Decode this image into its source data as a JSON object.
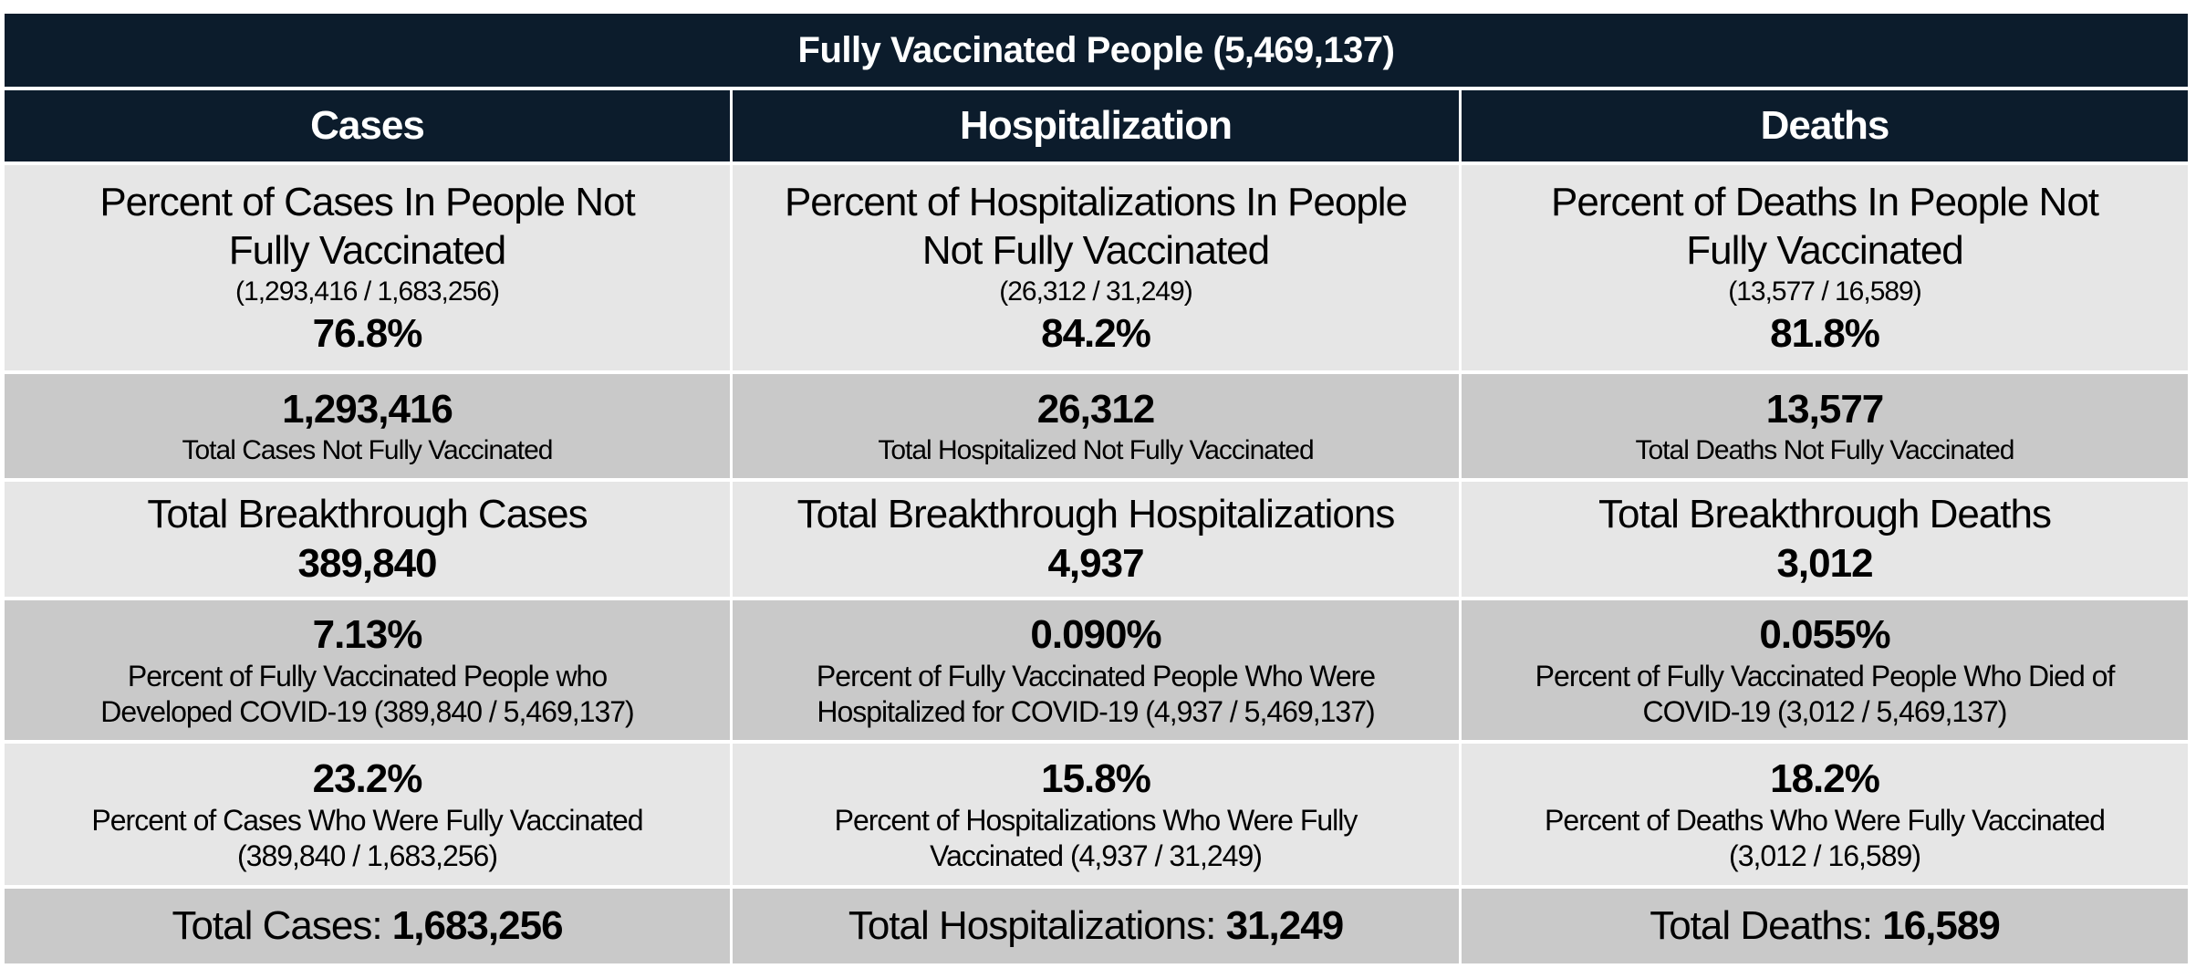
{
  "title": "Fully Vaccinated People (5,469,137)",
  "colors": {
    "header_bg": "#0c1c2c",
    "light_row": "#e6e6e6",
    "dark_row": "#c9c9c9"
  },
  "columns": [
    {
      "header": "Cases",
      "not_vax_pct_label_1": "Percent of Cases In People Not",
      "not_vax_pct_label_2": "Fully Vaccinated",
      "not_vax_fraction": "(1,293,416 / 1,683,256)",
      "not_vax_pct": "76.8%",
      "not_vax_total": "1,293,416",
      "not_vax_total_label": "Total Cases Not Fully Vaccinated",
      "breakthrough_label": "Total Breakthrough Cases",
      "breakthrough_value": "389,840",
      "vax_pop_pct": "7.13%",
      "vax_pop_label_1": "Percent of Fully Vaccinated People who",
      "vax_pop_label_2": "Developed COVID-19 (389,840 / 5,469,137)",
      "share_vax_pct": "23.2%",
      "share_vax_label_1": "Percent of Cases Who Were Fully Vaccinated",
      "share_vax_label_2": "(389,840 / 1,683,256)",
      "total_label": "Total Cases: ",
      "total_value": "1,683,256"
    },
    {
      "header": "Hospitalization",
      "not_vax_pct_label_1": "Percent of Hospitalizations In People",
      "not_vax_pct_label_2": "Not Fully Vaccinated",
      "not_vax_fraction": "(26,312 / 31,249)",
      "not_vax_pct": "84.2%",
      "not_vax_total": "26,312",
      "not_vax_total_label": "Total Hospitalized Not Fully Vaccinated",
      "breakthrough_label": "Total Breakthrough Hospitalizations",
      "breakthrough_value": "4,937",
      "vax_pop_pct": "0.090%",
      "vax_pop_label_1": "Percent of Fully Vaccinated People Who Were",
      "vax_pop_label_2": "Hospitalized for COVID-19 (4,937 / 5,469,137)",
      "share_vax_pct": "15.8%",
      "share_vax_label_1": "Percent of Hospitalizations Who Were Fully",
      "share_vax_label_2": "Vaccinated (4,937 / 31,249)",
      "total_label": "Total Hospitalizations: ",
      "total_value": "31,249"
    },
    {
      "header": "Deaths",
      "not_vax_pct_label_1": "Percent of Deaths In People Not",
      "not_vax_pct_label_2": "Fully Vaccinated",
      "not_vax_fraction": "(13,577 / 16,589)",
      "not_vax_pct": "81.8%",
      "not_vax_total": "13,577",
      "not_vax_total_label": "Total Deaths Not Fully Vaccinated",
      "breakthrough_label": "Total Breakthrough Deaths",
      "breakthrough_value": "3,012",
      "vax_pop_pct": "0.055%",
      "vax_pop_label_1": "Percent of Fully Vaccinated People Who Died of",
      "vax_pop_label_2": "COVID-19 (3,012 / 5,469,137)",
      "share_vax_pct": "18.2%",
      "share_vax_label_1": "Percent of Deaths Who Were Fully Vaccinated",
      "share_vax_label_2": "(3,012 / 16,589)",
      "total_label": "Total Deaths: ",
      "total_value": "16,589"
    }
  ]
}
